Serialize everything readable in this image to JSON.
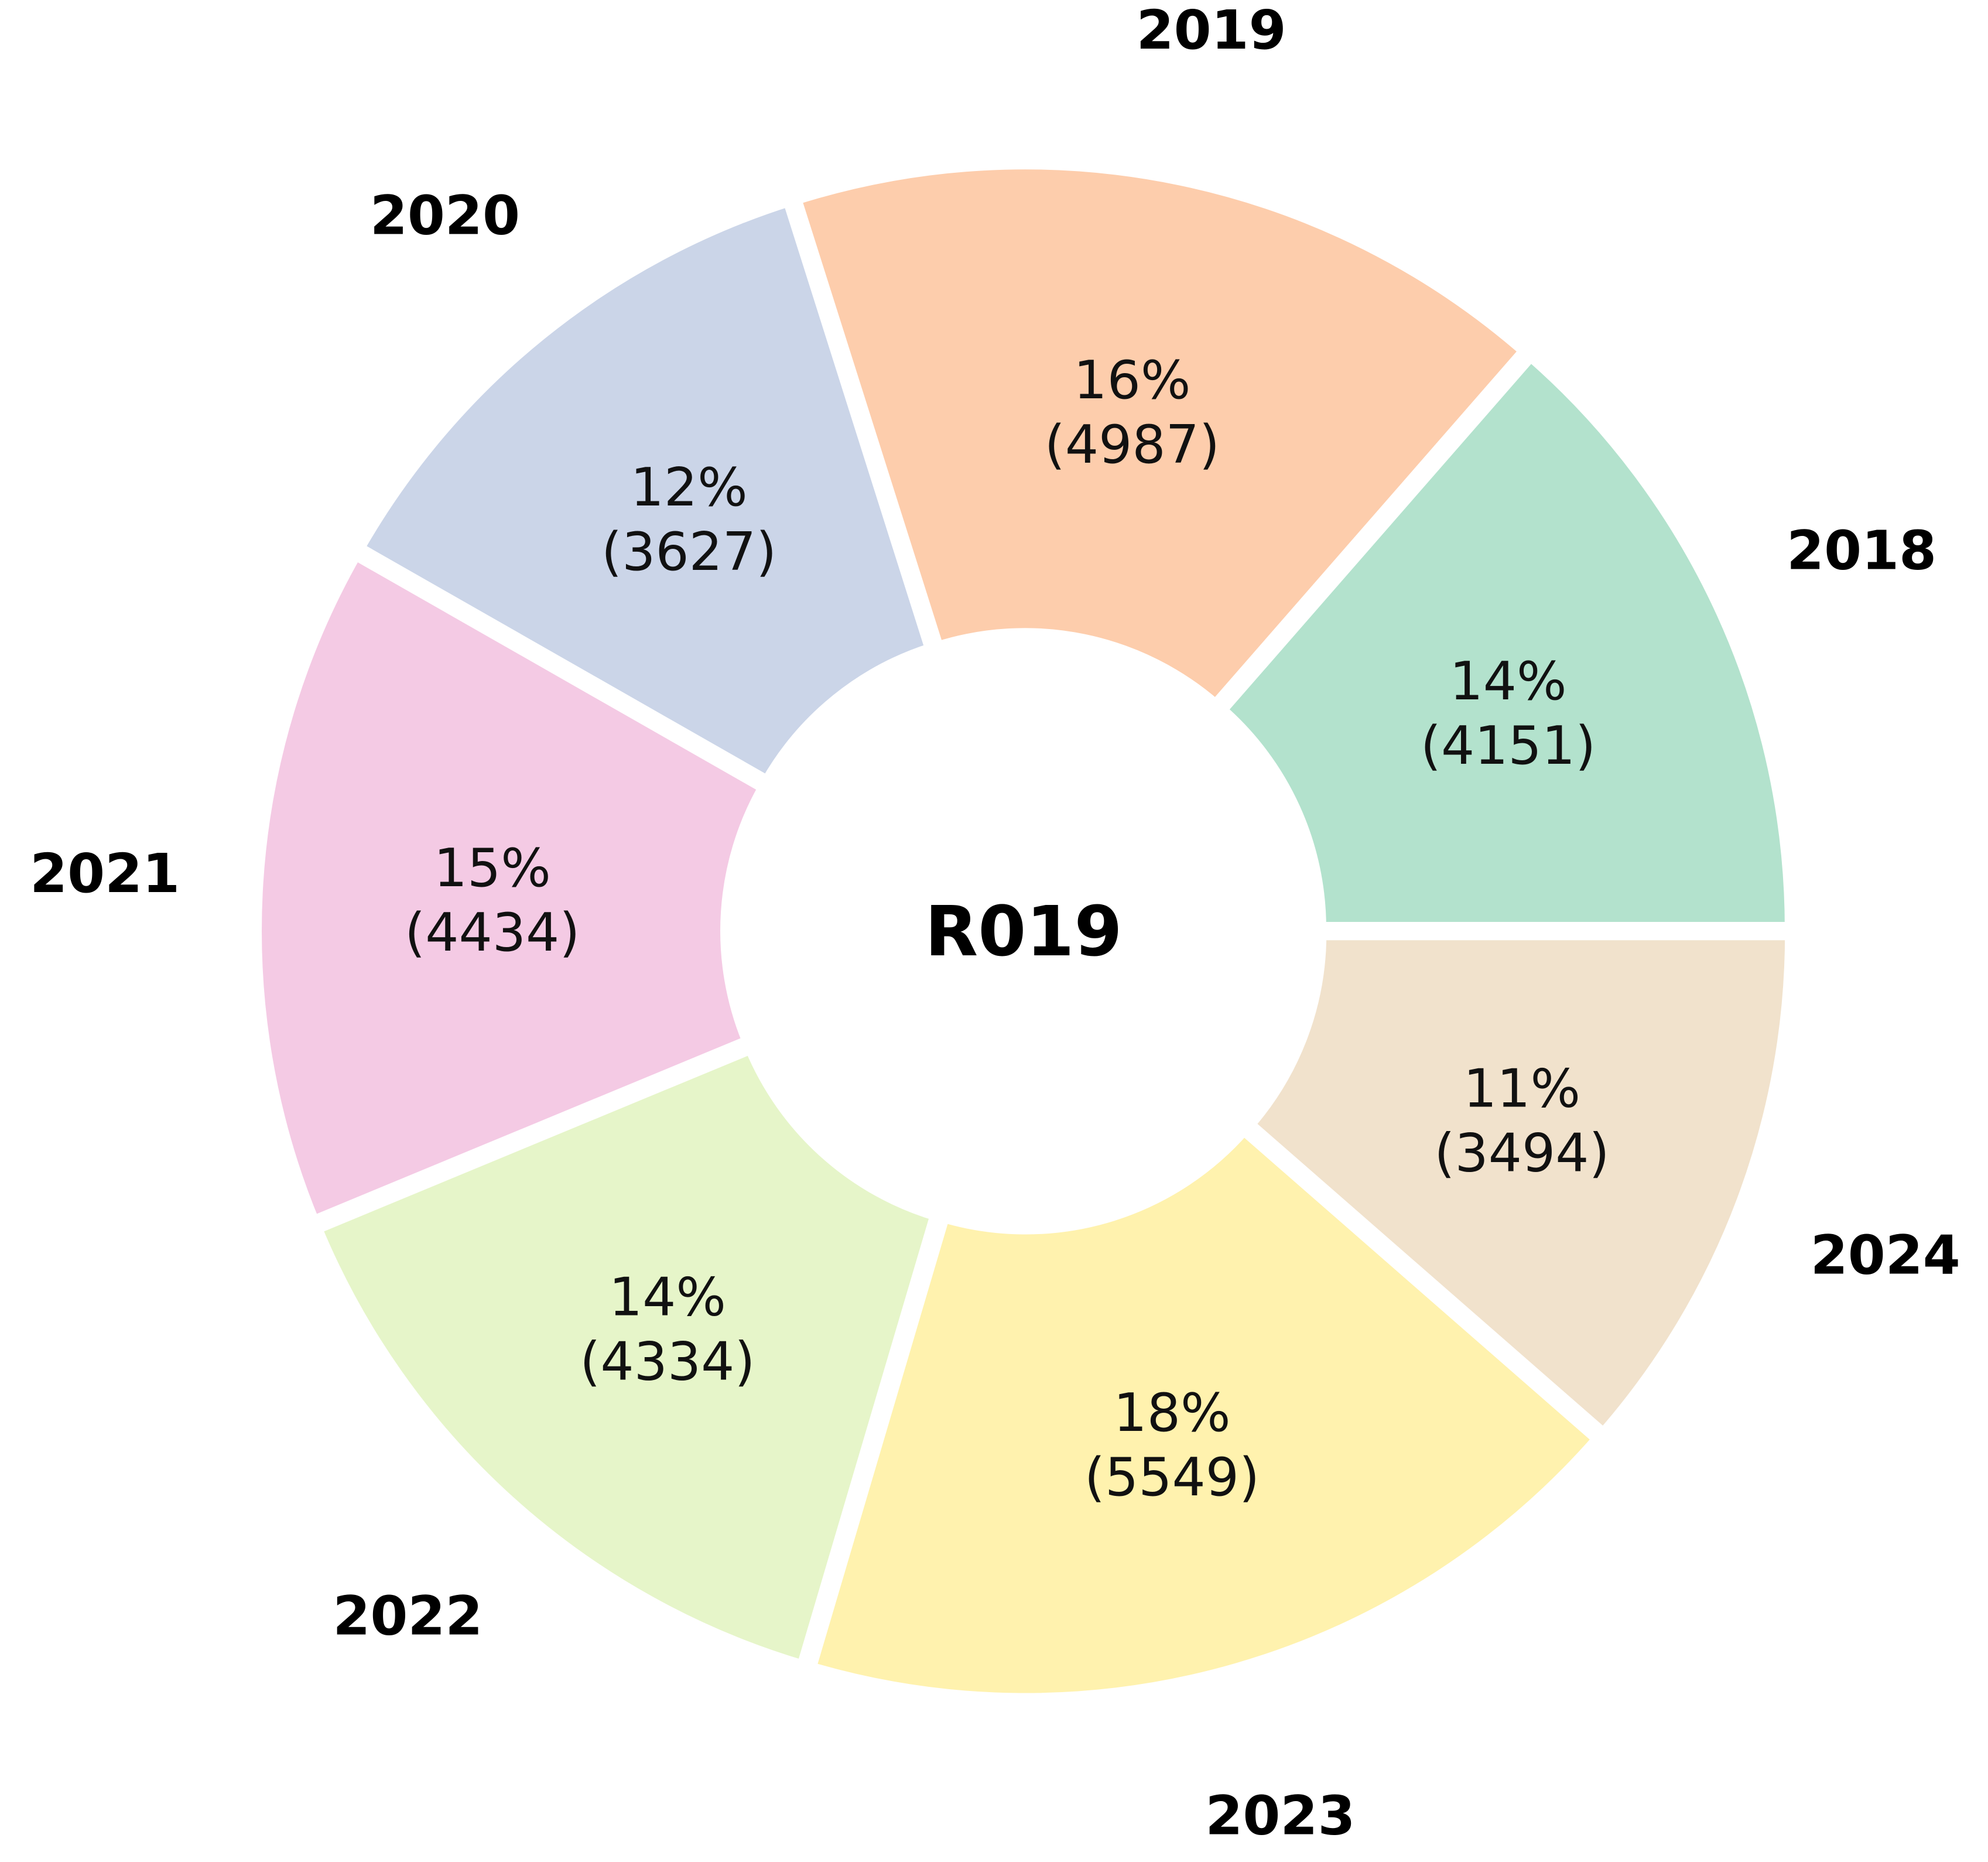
{
  "chart_data": {
    "type": "pie",
    "variant": "donut",
    "center_label": "R019",
    "start": "3 o'clock",
    "direction": "counter-clockwise",
    "categories": [
      "2018",
      "2019",
      "2020",
      "2021",
      "2022",
      "2023",
      "2024"
    ],
    "values": [
      4151,
      4987,
      3627,
      4434,
      4334,
      5549,
      3494
    ],
    "percent_labels": [
      "14%",
      "16%",
      "12%",
      "15%",
      "14%",
      "18%",
      "11%"
    ],
    "value_labels": [
      "(4151)",
      "(4987)",
      "(3627)",
      "(4434)",
      "(4334)",
      "(5549)",
      "(3494)"
    ],
    "colors": [
      "#b3e2cd",
      "#fdcdac",
      "#cbd5e8",
      "#f4cae4",
      "#e6f5c9",
      "#fff2ae",
      "#f1e2cc"
    ],
    "legend": "none",
    "separator_color": "#ffffff"
  }
}
